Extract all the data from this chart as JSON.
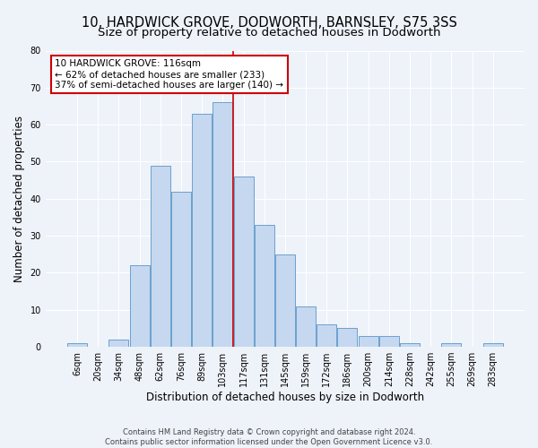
{
  "title": "10, HARDWICK GROVE, DODWORTH, BARNSLEY, S75 3SS",
  "subtitle": "Size of property relative to detached houses in Dodworth",
  "xlabel": "Distribution of detached houses by size in Dodworth",
  "ylabel": "Number of detached properties",
  "footer_line1": "Contains HM Land Registry data © Crown copyright and database right 2024.",
  "footer_line2": "Contains public sector information licensed under the Open Government Licence v3.0.",
  "categories": [
    "6sqm",
    "20sqm",
    "34sqm",
    "48sqm",
    "62sqm",
    "76sqm",
    "89sqm",
    "103sqm",
    "117sqm",
    "131sqm",
    "145sqm",
    "159sqm",
    "172sqm",
    "186sqm",
    "200sqm",
    "214sqm",
    "228sqm",
    "242sqm",
    "255sqm",
    "269sqm",
    "283sqm"
  ],
  "values": [
    1,
    0,
    2,
    22,
    49,
    42,
    63,
    66,
    46,
    33,
    25,
    11,
    6,
    5,
    3,
    3,
    1,
    0,
    1,
    0,
    1
  ],
  "bar_color": "#c5d8f0",
  "bar_edge_color": "#5a96c8",
  "property_line_index": 8,
  "property_line_label": "10 HARDWICK GROVE: 116sqm",
  "annotation_line1": "← 62% of detached houses are smaller (233)",
  "annotation_line2": "37% of semi-detached houses are larger (140) →",
  "vline_color": "#cc0000",
  "annotation_box_edge_color": "#cc0000",
  "ylim": [
    0,
    80
  ],
  "yticks": [
    0,
    10,
    20,
    30,
    40,
    50,
    60,
    70,
    80
  ],
  "background_color": "#eef2f9",
  "grid_color": "#ffffff",
  "title_fontsize": 10.5,
  "subtitle_fontsize": 9.5,
  "axis_label_fontsize": 8.5,
  "tick_fontsize": 7,
  "annotation_fontsize": 7.5,
  "footer_fontsize": 6
}
